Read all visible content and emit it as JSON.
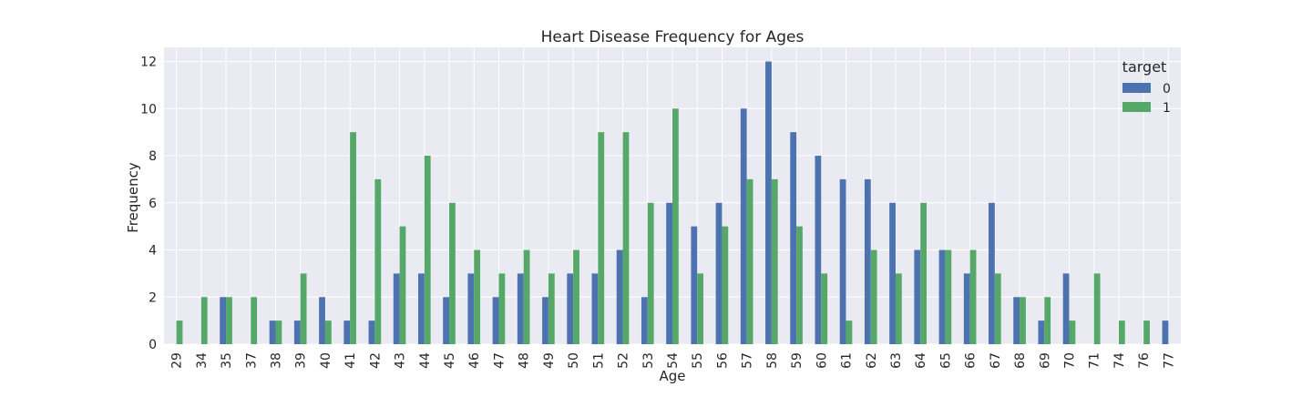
{
  "chart_data": {
    "type": "bar",
    "title": "Heart Disease Frequency for Ages",
    "xlabel": "Age",
    "ylabel": "Frequency",
    "ylim": [
      0,
      12.6
    ],
    "yticks": [
      0,
      2,
      4,
      6,
      8,
      10,
      12
    ],
    "grid": true,
    "legend": {
      "title": "target",
      "placement": "top-right"
    },
    "categories": [
      "29",
      "34",
      "35",
      "37",
      "38",
      "39",
      "40",
      "41",
      "42",
      "43",
      "44",
      "45",
      "46",
      "47",
      "48",
      "49",
      "50",
      "51",
      "52",
      "53",
      "54",
      "55",
      "56",
      "57",
      "58",
      "59",
      "60",
      "61",
      "62",
      "63",
      "64",
      "65",
      "66",
      "67",
      "68",
      "69",
      "70",
      "71",
      "74",
      "76",
      "77"
    ],
    "series": [
      {
        "name": "0",
        "color": "#4c72b0",
        "values": [
          0,
          0,
          2,
          0,
          1,
          1,
          2,
          1,
          1,
          3,
          3,
          2,
          3,
          2,
          3,
          2,
          3,
          3,
          4,
          2,
          6,
          5,
          6,
          10,
          12,
          9,
          8,
          7,
          7,
          6,
          4,
          4,
          3,
          6,
          2,
          1,
          3,
          0,
          0,
          0,
          1
        ]
      },
      {
        "name": "1",
        "color": "#55a868",
        "values": [
          1,
          2,
          2,
          2,
          1,
          3,
          1,
          9,
          7,
          5,
          8,
          6,
          4,
          3,
          4,
          3,
          4,
          9,
          9,
          6,
          10,
          3,
          5,
          7,
          7,
          5,
          3,
          1,
          4,
          3,
          6,
          4,
          4,
          3,
          2,
          2,
          1,
          3,
          1,
          1,
          0
        ]
      }
    ]
  }
}
